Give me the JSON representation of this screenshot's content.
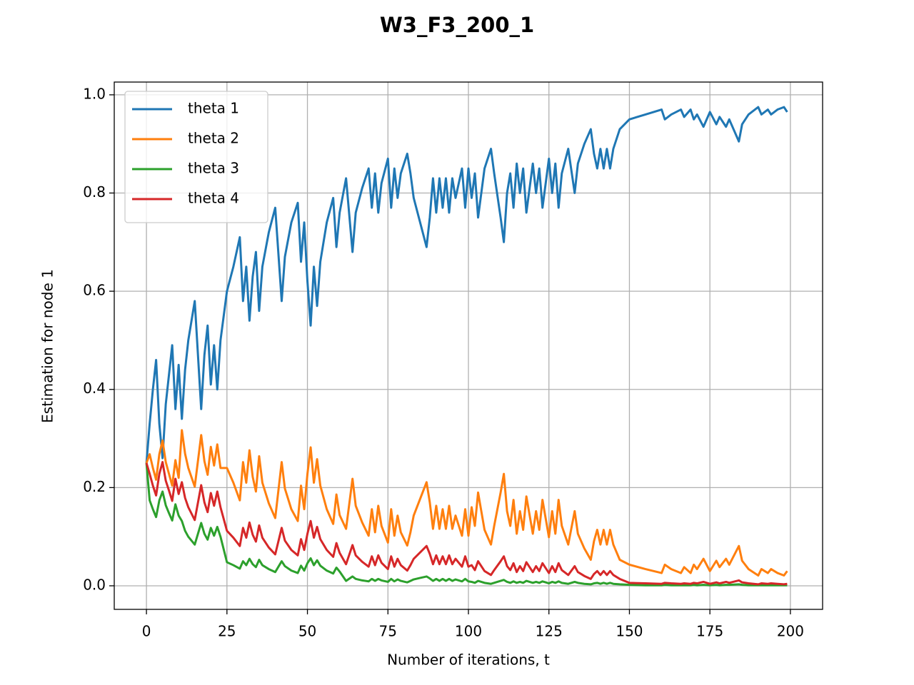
{
  "chart_data": {
    "type": "line",
    "title": "W3_F3_200_1",
    "xlabel": "Number of iterations, t",
    "ylabel": "Estimation for node 1",
    "x": [
      0,
      1,
      2,
      3,
      4,
      5,
      6,
      7,
      8,
      9,
      10,
      11,
      12,
      13,
      15,
      17,
      18,
      19,
      20,
      21,
      22,
      23,
      25,
      27,
      29,
      30,
      31,
      32,
      33,
      34,
      35,
      36,
      38,
      40,
      42,
      43,
      45,
      47,
      48,
      49,
      50,
      51,
      52,
      53,
      54,
      56,
      58,
      59,
      60,
      62,
      64,
      65,
      67,
      69,
      70,
      71,
      72,
      73,
      75,
      76,
      77,
      78,
      79,
      81,
      82,
      83,
      85,
      87,
      88,
      89,
      90,
      91,
      92,
      93,
      94,
      95,
      96,
      98,
      99,
      100,
      101,
      102,
      103,
      105,
      107,
      108,
      110,
      111,
      112,
      113,
      114,
      115,
      116,
      117,
      118,
      120,
      121,
      122,
      123,
      125,
      126,
      127,
      128,
      129,
      131,
      133,
      134,
      136,
      138,
      139,
      140,
      141,
      142,
      143,
      144,
      145,
      147,
      150,
      155,
      160,
      161,
      163,
      166,
      167,
      169,
      170,
      171,
      173,
      175,
      177,
      178,
      180,
      181,
      184,
      185,
      187,
      190,
      191,
      193,
      194,
      196,
      198,
      199
    ],
    "series": [
      {
        "name": "theta 1",
        "color": "#1f77b4",
        "values": [
          0.25,
          0.33,
          0.4,
          0.46,
          0.33,
          0.26,
          0.37,
          0.43,
          0.49,
          0.36,
          0.45,
          0.34,
          0.44,
          0.5,
          0.58,
          0.36,
          0.47,
          0.53,
          0.41,
          0.49,
          0.4,
          0.5,
          0.6,
          0.65,
          0.71,
          0.58,
          0.65,
          0.54,
          0.63,
          0.68,
          0.56,
          0.65,
          0.72,
          0.77,
          0.58,
          0.67,
          0.74,
          0.78,
          0.66,
          0.74,
          0.62,
          0.53,
          0.65,
          0.57,
          0.66,
          0.74,
          0.79,
          0.69,
          0.76,
          0.83,
          0.68,
          0.76,
          0.81,
          0.85,
          0.77,
          0.84,
          0.76,
          0.82,
          0.87,
          0.77,
          0.85,
          0.79,
          0.84,
          0.88,
          0.84,
          0.79,
          0.74,
          0.69,
          0.75,
          0.83,
          0.76,
          0.83,
          0.77,
          0.83,
          0.76,
          0.83,
          0.79,
          0.85,
          0.77,
          0.85,
          0.79,
          0.84,
          0.75,
          0.85,
          0.89,
          0.84,
          0.75,
          0.7,
          0.8,
          0.84,
          0.77,
          0.86,
          0.8,
          0.85,
          0.76,
          0.86,
          0.8,
          0.85,
          0.77,
          0.87,
          0.8,
          0.86,
          0.77,
          0.84,
          0.89,
          0.8,
          0.86,
          0.9,
          0.93,
          0.88,
          0.85,
          0.89,
          0.85,
          0.89,
          0.85,
          0.89,
          0.93,
          0.95,
          0.96,
          0.97,
          0.95,
          0.96,
          0.97,
          0.955,
          0.97,
          0.95,
          0.96,
          0.935,
          0.965,
          0.94,
          0.955,
          0.935,
          0.95,
          0.905,
          0.94,
          0.96,
          0.975,
          0.96,
          0.97,
          0.96,
          0.97,
          0.975,
          0.965
        ]
      },
      {
        "name": "theta 2",
        "color": "#ff7f0e",
        "values": [
          0.25,
          0.268,
          0.24,
          0.216,
          0.268,
          0.296,
          0.252,
          0.228,
          0.204,
          0.256,
          0.22,
          0.317,
          0.269,
          0.24,
          0.202,
          0.307,
          0.254,
          0.226,
          0.283,
          0.245,
          0.288,
          0.24,
          0.24,
          0.21,
          0.174,
          0.252,
          0.21,
          0.276,
          0.222,
          0.192,
          0.264,
          0.21,
          0.168,
          0.138,
          0.252,
          0.198,
          0.156,
          0.132,
          0.204,
          0.156,
          0.228,
          0.282,
          0.21,
          0.258,
          0.204,
          0.156,
          0.126,
          0.186,
          0.144,
          0.116,
          0.218,
          0.163,
          0.129,
          0.102,
          0.156,
          0.109,
          0.163,
          0.122,
          0.088,
          0.156,
          0.102,
          0.143,
          0.109,
          0.082,
          0.109,
          0.143,
          0.177,
          0.211,
          0.17,
          0.116,
          0.163,
          0.116,
          0.156,
          0.116,
          0.163,
          0.116,
          0.143,
          0.102,
          0.156,
          0.102,
          0.16,
          0.122,
          0.19,
          0.114,
          0.084,
          0.122,
          0.19,
          0.228,
          0.152,
          0.122,
          0.175,
          0.106,
          0.152,
          0.114,
          0.182,
          0.106,
          0.152,
          0.114,
          0.175,
          0.099,
          0.152,
          0.106,
          0.175,
          0.122,
          0.084,
          0.152,
          0.106,
          0.076,
          0.053,
          0.091,
          0.114,
          0.084,
          0.114,
          0.084,
          0.114,
          0.084,
          0.053,
          0.043,
          0.034,
          0.026,
          0.043,
          0.034,
          0.026,
          0.038,
          0.026,
          0.043,
          0.034,
          0.055,
          0.03,
          0.051,
          0.038,
          0.055,
          0.043,
          0.081,
          0.051,
          0.034,
          0.021,
          0.034,
          0.026,
          0.034,
          0.026,
          0.021,
          0.03
        ]
      },
      {
        "name": "theta 3",
        "color": "#2ca02c",
        "values": [
          0.25,
          0.174,
          0.156,
          0.14,
          0.174,
          0.192,
          0.164,
          0.148,
          0.133,
          0.166,
          0.143,
          0.132,
          0.112,
          0.1,
          0.084,
          0.128,
          0.106,
          0.094,
          0.118,
          0.102,
          0.12,
          0.1,
          0.048,
          0.042,
          0.035,
          0.05,
          0.042,
          0.055,
          0.044,
          0.038,
          0.053,
          0.042,
          0.034,
          0.028,
          0.05,
          0.04,
          0.031,
          0.026,
          0.041,
          0.031,
          0.046,
          0.056,
          0.042,
          0.052,
          0.041,
          0.031,
          0.025,
          0.037,
          0.029,
          0.01,
          0.019,
          0.014,
          0.011,
          0.009,
          0.014,
          0.01,
          0.014,
          0.011,
          0.008,
          0.014,
          0.009,
          0.013,
          0.01,
          0.007,
          0.01,
          0.013,
          0.016,
          0.019,
          0.015,
          0.01,
          0.014,
          0.01,
          0.014,
          0.01,
          0.014,
          0.01,
          0.013,
          0.009,
          0.014,
          0.009,
          0.008,
          0.006,
          0.01,
          0.006,
          0.004,
          0.006,
          0.01,
          0.012,
          0.008,
          0.006,
          0.009,
          0.006,
          0.008,
          0.006,
          0.01,
          0.006,
          0.008,
          0.006,
          0.009,
          0.005,
          0.008,
          0.006,
          0.009,
          0.006,
          0.004,
          0.008,
          0.006,
          0.004,
          0.003,
          0.005,
          0.006,
          0.004,
          0.006,
          0.004,
          0.006,
          0.004,
          0.003,
          0.002,
          0.001,
          0.001,
          0.002,
          0.001,
          0.001,
          0.001,
          0.001,
          0.002,
          0.001,
          0.002,
          0.001,
          0.002,
          0.001,
          0.002,
          0.002,
          0.003,
          0.002,
          0.001,
          0.001,
          0.001,
          0.001,
          0.001,
          0.001,
          0.001,
          0.001
        ]
      },
      {
        "name": "theta 4",
        "color": "#d62728",
        "values": [
          0.25,
          0.228,
          0.204,
          0.184,
          0.228,
          0.252,
          0.214,
          0.194,
          0.173,
          0.218,
          0.187,
          0.211,
          0.179,
          0.16,
          0.134,
          0.205,
          0.17,
          0.15,
          0.189,
          0.163,
          0.192,
          0.16,
          0.112,
          0.098,
          0.081,
          0.118,
          0.098,
          0.129,
          0.104,
          0.09,
          0.123,
          0.098,
          0.078,
          0.064,
          0.118,
          0.092,
          0.073,
          0.062,
          0.095,
          0.073,
          0.106,
          0.132,
          0.098,
          0.12,
          0.095,
          0.073,
          0.059,
          0.087,
          0.067,
          0.044,
          0.083,
          0.062,
          0.049,
          0.039,
          0.06,
          0.042,
          0.062,
          0.047,
          0.034,
          0.06,
          0.039,
          0.055,
          0.042,
          0.031,
          0.042,
          0.055,
          0.068,
          0.081,
          0.065,
          0.044,
          0.062,
          0.044,
          0.06,
          0.044,
          0.062,
          0.044,
          0.055,
          0.039,
          0.06,
          0.039,
          0.042,
          0.032,
          0.05,
          0.03,
          0.022,
          0.032,
          0.05,
          0.06,
          0.04,
          0.032,
          0.046,
          0.028,
          0.04,
          0.03,
          0.048,
          0.028,
          0.04,
          0.03,
          0.046,
          0.026,
          0.04,
          0.028,
          0.046,
          0.032,
          0.022,
          0.04,
          0.028,
          0.02,
          0.014,
          0.024,
          0.03,
          0.022,
          0.03,
          0.022,
          0.03,
          0.022,
          0.014,
          0.006,
          0.005,
          0.004,
          0.006,
          0.005,
          0.004,
          0.005,
          0.004,
          0.006,
          0.005,
          0.008,
          0.004,
          0.007,
          0.005,
          0.008,
          0.006,
          0.011,
          0.007,
          0.005,
          0.003,
          0.005,
          0.004,
          0.005,
          0.004,
          0.003,
          0.004
        ]
      }
    ],
    "xlim": [
      -10,
      210
    ],
    "xticks": [
      0,
      25,
      50,
      75,
      100,
      125,
      150,
      175,
      200
    ],
    "ylim": [
      -0.048,
      1.026
    ],
    "yticks": [
      {
        "value": 0,
        "label": "0.0"
      },
      {
        "value": 0.2,
        "label": "0.2"
      },
      {
        "value": 0.4,
        "label": "0.4"
      },
      {
        "value": 0.6,
        "label": "0.6"
      },
      {
        "value": 0.8,
        "label": "0.8"
      },
      {
        "value": 1,
        "label": "1.0"
      }
    ],
    "grid": true,
    "legend": "upper left"
  }
}
